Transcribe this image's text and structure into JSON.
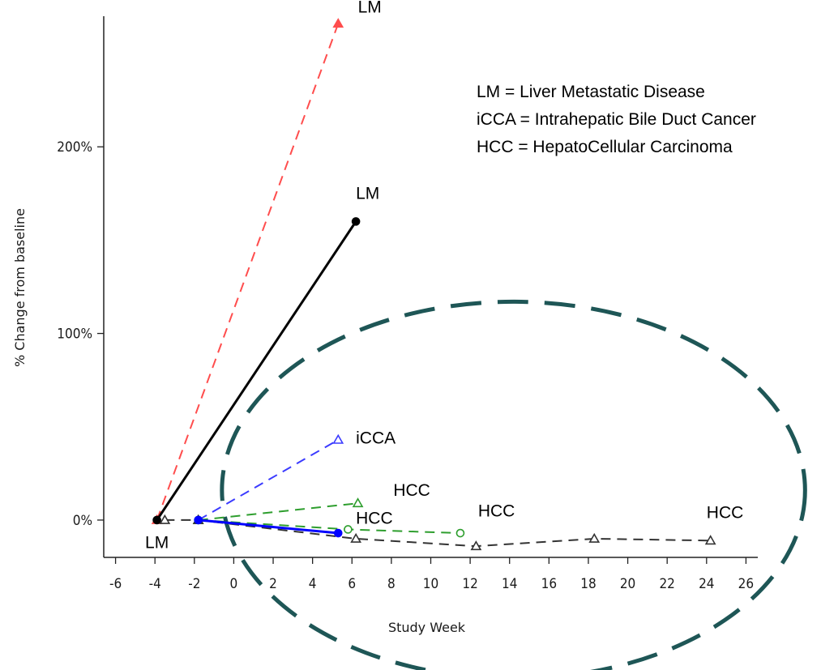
{
  "chart_data": {
    "type": "line",
    "title": "",
    "xlabel": "Study Week",
    "ylabel": "% Change from baseline",
    "xlim": [
      -6.6,
      26.6
    ],
    "ylim": [
      -20,
      270
    ],
    "x_ticks": [
      -6,
      -4,
      -2,
      0,
      2,
      4,
      6,
      8,
      10,
      12,
      14,
      16,
      18,
      20,
      22,
      24,
      26
    ],
    "x_tick_labels": [
      "-6",
      "-4",
      "-2",
      "0",
      "2",
      "4",
      "6",
      "8",
      "10",
      "12",
      "14",
      "16",
      "18",
      "20",
      "22",
      "24",
      "26"
    ],
    "y_ticks": [
      0,
      100,
      200
    ],
    "y_tick_labels": [
      "0%",
      "100%",
      "200%"
    ],
    "grid": false,
    "series": [
      {
        "style": "dashed",
        "color": "#ff4d4d",
        "marker": "triangle",
        "filled": true,
        "x": [
          -3.9,
          5.3
        ],
        "y": [
          0,
          266
        ]
      },
      {
        "style": "solid",
        "color": "#000000",
        "marker": "circle",
        "filled": true,
        "x": [
          -3.9,
          6.2
        ],
        "y": [
          0,
          160
        ]
      },
      {
        "style": "dashed",
        "color": "#3b3bff",
        "marker": "triangle",
        "filled": false,
        "x": [
          -1.8,
          5.3
        ],
        "y": [
          0,
          43
        ]
      },
      {
        "style": "dashed",
        "color": "#2e9e2e",
        "marker": "triangle",
        "filled": false,
        "x": [
          -1.8,
          6.3
        ],
        "y": [
          0,
          9
        ]
      },
      {
        "style": "dashed",
        "color": "#2e9e2e",
        "marker": "circle",
        "filled": false,
        "x": [
          -1.8,
          5.8,
          11.5
        ],
        "y": [
          0,
          -5,
          -7
        ]
      },
      {
        "style": "dashed",
        "color": "#333333",
        "marker": "triangle",
        "filled": false,
        "x": [
          -3.5,
          -1.8,
          6.2,
          12.3,
          18.3,
          24.2
        ],
        "y": [
          0,
          0,
          -10,
          -14,
          -10,
          -11
        ]
      },
      {
        "style": "solid",
        "color": "#0000ff",
        "marker": "circle",
        "filled": true,
        "x": [
          -1.8,
          5.3
        ],
        "y": [
          0,
          -7
        ]
      }
    ],
    "annotations": [
      {
        "text": "LM",
        "x": 6.3,
        "y": 272
      },
      {
        "text": "LM",
        "x": 6.2,
        "y": 172
      },
      {
        "text": "iCCA",
        "x": 6.2,
        "y": 41
      },
      {
        "text": "HCC",
        "x": 8.1,
        "y": 13
      },
      {
        "text": "HCC",
        "x": 6.2,
        "y": -2
      },
      {
        "text": "HCC",
        "x": 12.4,
        "y": 2
      },
      {
        "text": "HCC",
        "x": 24.0,
        "y": 1
      },
      {
        "text": "LM",
        "x": -4.5,
        "y": -15
      }
    ],
    "legend": {
      "placement": "top-right",
      "entries": [
        "LM = Liver Metastatic Disease",
        "iCCA = Intrahepatic Bile Duct Cancer",
        "HCC = HepatoCellular Carcinoma"
      ]
    },
    "highlight": {
      "shape": "ellipse",
      "style": "dashed",
      "color": "#1e5656",
      "cx": 14.2,
      "cy": 16,
      "rx": 14.8,
      "ry": 101
    }
  }
}
